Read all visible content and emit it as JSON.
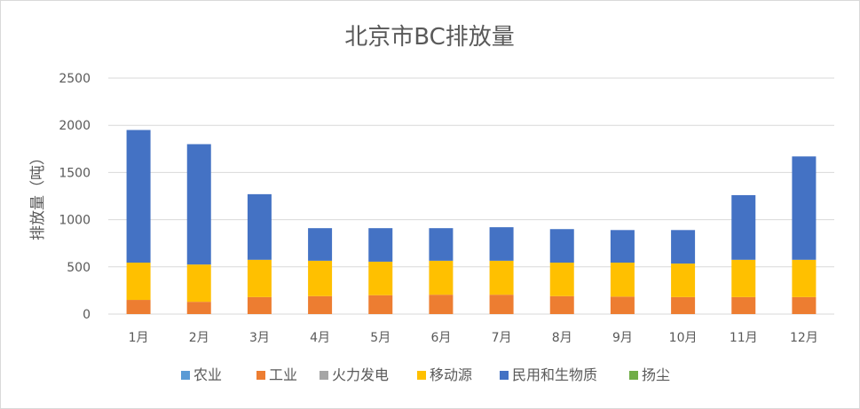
{
  "chart_data": {
    "type": "bar",
    "stacked": true,
    "title": "北京市BC排放量",
    "xlabel": "",
    "ylabel": "排放量（吨）",
    "categories": [
      "1月",
      "2月",
      "3月",
      "4月",
      "5月",
      "6月",
      "7月",
      "8月",
      "9月",
      "10月",
      "11月",
      "12月"
    ],
    "ylim": [
      0,
      2500
    ],
    "yticks": [
      0,
      500,
      1000,
      1500,
      2000,
      2500
    ],
    "grid": true,
    "legend_position": "bottom",
    "series": [
      {
        "name": "农业",
        "color": "#5b9bd5",
        "values": [
          0,
          0,
          0,
          0,
          0,
          0,
          0,
          0,
          0,
          0,
          0,
          0
        ]
      },
      {
        "name": "工业",
        "color": "#ed7d31",
        "values": [
          150,
          130,
          180,
          190,
          200,
          205,
          205,
          190,
          185,
          180,
          180,
          180
        ]
      },
      {
        "name": "火力发电",
        "color": "#a5a5a5",
        "values": [
          0,
          0,
          0,
          0,
          0,
          0,
          0,
          0,
          0,
          0,
          0,
          0
        ]
      },
      {
        "name": "移动源",
        "color": "#ffc000",
        "values": [
          395,
          395,
          395,
          375,
          355,
          360,
          360,
          355,
          360,
          355,
          395,
          395
        ]
      },
      {
        "name": "民用和生物质",
        "color": "#4472c4",
        "values": [
          1405,
          1275,
          695,
          345,
          355,
          345,
          355,
          355,
          345,
          355,
          685,
          1095
        ]
      },
      {
        "name": "扬尘",
        "color": "#70ad47",
        "values": [
          0,
          0,
          0,
          0,
          0,
          0,
          0,
          0,
          0,
          0,
          0,
          0
        ]
      }
    ]
  }
}
